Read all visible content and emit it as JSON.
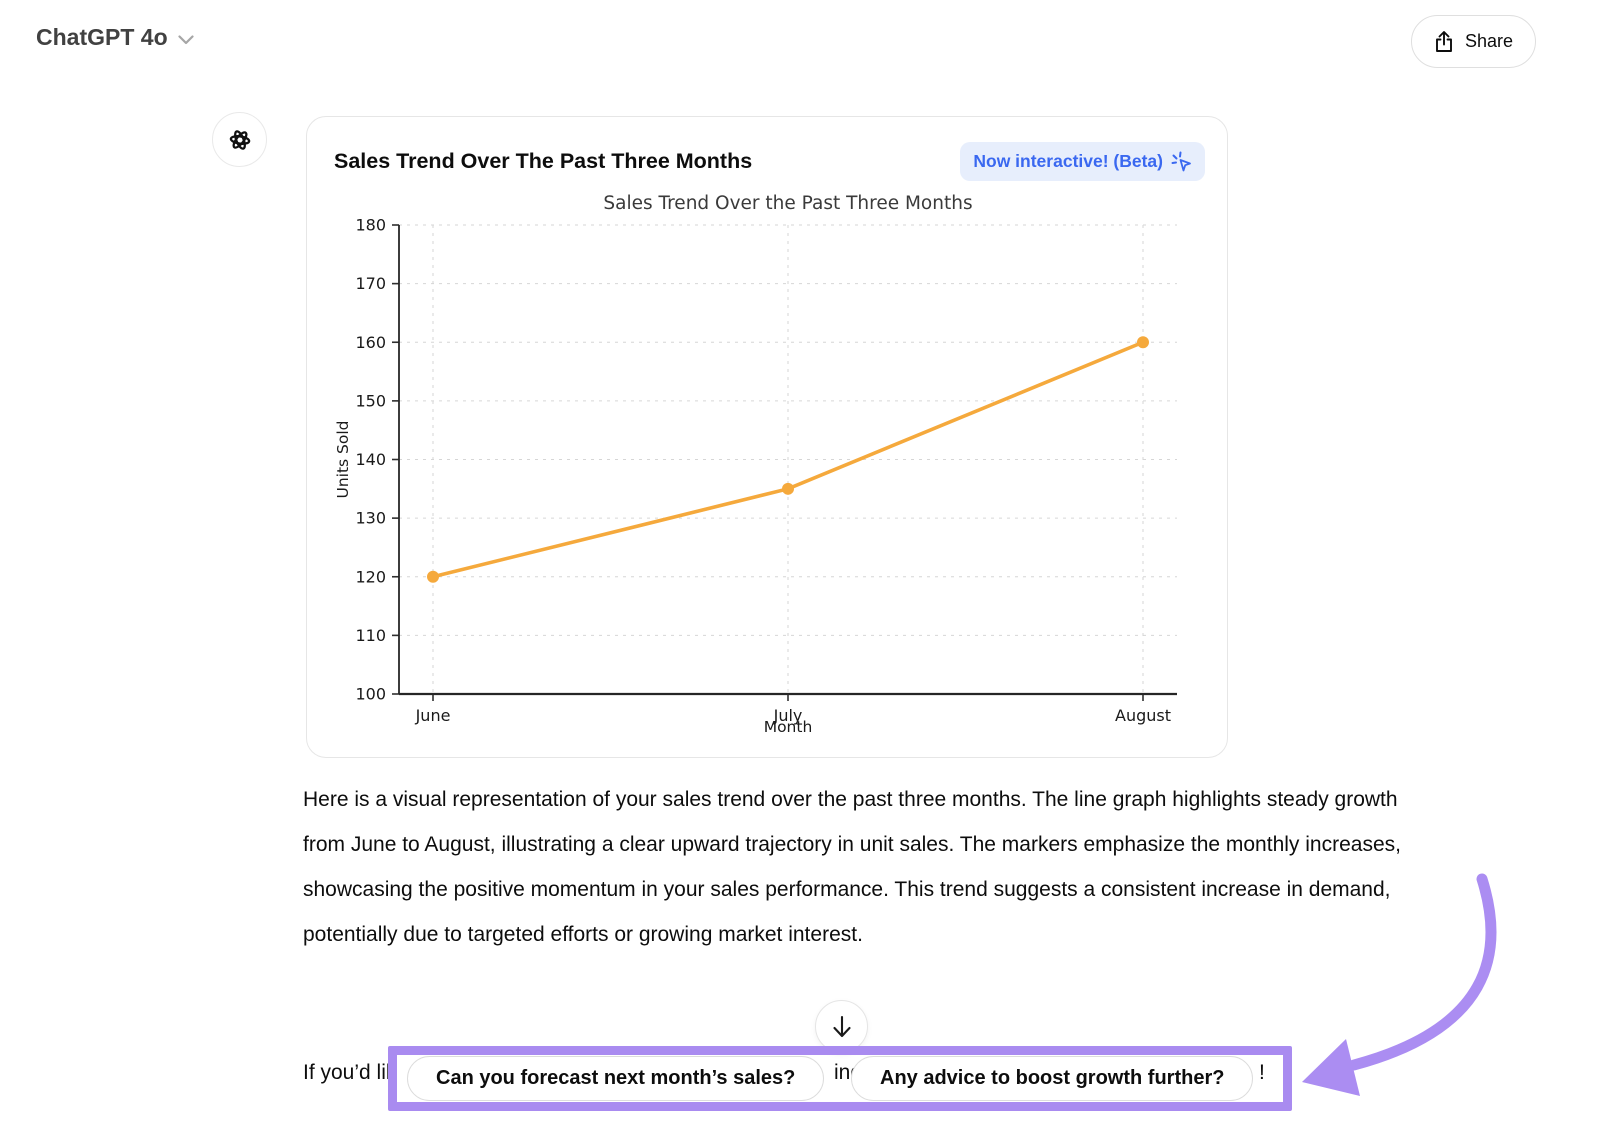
{
  "header": {
    "model_label": "ChatGPT 4o",
    "share_label": "Share"
  },
  "card": {
    "title": "Sales Trend Over The Past Three Months",
    "badge": "Now interactive! (Beta)"
  },
  "chart_data": {
    "type": "line",
    "title": "Sales Trend Over the Past Three Months",
    "categories": [
      "June",
      "July",
      "August"
    ],
    "values": [
      120,
      135,
      160
    ],
    "xlabel": "Month",
    "ylabel": "Units Sold",
    "ylim": [
      100,
      180
    ],
    "ytick_step": 10,
    "grid": true,
    "grid_style": "dashed",
    "legend": "none",
    "line_color": "#f5a93c",
    "marker": "circle"
  },
  "main": {
    "paragraph": "Here is a visual representation of your sales trend over the past three months. The line graph highlights steady growth from June to August, illustrating a clear upward trajectory in unit sales. The markers emphasize the monthly increases, showcasing the positive momentum in your sales performance. This trend suggests a consistent increase in demand, potentially due to targeted efforts or growing market interest.",
    "occluded_line": {
      "left_fragment": "If you’d lik",
      "mid_fragment": "ing",
      "right_fragment": "!"
    }
  },
  "suggestions": {
    "pills": [
      "Can you forecast next month’s sales?",
      "Any advice to boost growth further?"
    ]
  },
  "scroll_button": {
    "icon": "arrow-down"
  },
  "icons": {
    "model_chevron": "chevron-down",
    "share": "upload-arrow",
    "avatar": "openai-logo",
    "badge": "sparkle-cursor",
    "scroll": "arrow-down"
  },
  "colors": {
    "badge_blue": "#3a68f0",
    "badge_bg": "#e7eefc",
    "line_orange": "#f5a93c",
    "annotation_purple": "#a98bf0",
    "body_text": "#0d0d0d"
  }
}
